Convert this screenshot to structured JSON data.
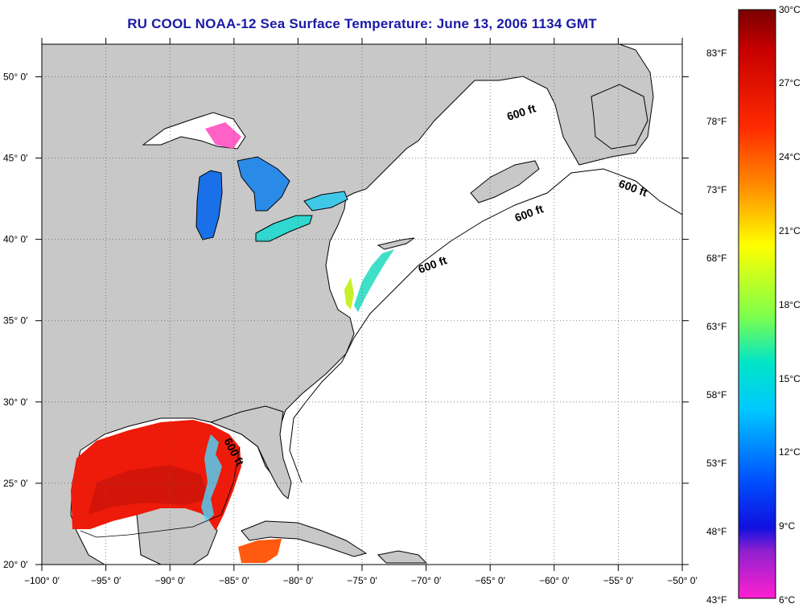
{
  "title": "RU COOL  NOAA-12  Sea Surface Temperature:  June 13, 2006 1134 GMT",
  "map": {
    "lon_range": [
      -100,
      -50
    ],
    "lat_range": [
      20,
      52
    ],
    "x_ticks": [
      {
        "lon": -100,
        "label": "−100° 0′"
      },
      {
        "lon": -95,
        "label": "−95° 0′"
      },
      {
        "lon": -90,
        "label": "−90° 0′"
      },
      {
        "lon": -85,
        "label": "−85° 0′"
      },
      {
        "lon": -80,
        "label": "−80° 0′"
      },
      {
        "lon": -75,
        "label": "−75° 0′"
      },
      {
        "lon": -70,
        "label": "−70° 0′"
      },
      {
        "lon": -65,
        "label": "−65° 0′"
      },
      {
        "lon": -60,
        "label": "−60° 0′"
      },
      {
        "lon": -55,
        "label": "−55° 0′"
      },
      {
        "lon": -50,
        "label": "−50° 0′"
      }
    ],
    "y_ticks": [
      {
        "lat": 20,
        "label": "20° 0′"
      },
      {
        "lat": 25,
        "label": "25° 0′"
      },
      {
        "lat": 30,
        "label": "30° 0′"
      },
      {
        "lat": 35,
        "label": "35° 0′"
      },
      {
        "lat": 40,
        "label": "40° 0′"
      },
      {
        "lat": 45,
        "label": "45° 0′"
      },
      {
        "lat": 50,
        "label": "50° 0′"
      }
    ],
    "contour_labels": [
      "600 ft",
      "600 ft",
      "600 ft",
      "600 ft",
      "600 ft"
    ],
    "land_color": "#c8c8c8",
    "ocean_color": "#ffffff"
  },
  "colorbar": {
    "celsius_labels": [
      "30°C",
      "27°C",
      "24°C",
      "21°C",
      "18°C",
      "15°C",
      "12°C",
      "9°C",
      "6°C"
    ],
    "fahrenheit_labels": [
      "83°F",
      "78°F",
      "73°F",
      "68°F",
      "63°F",
      "58°F",
      "53°F",
      "48°F",
      "43°F"
    ]
  }
}
